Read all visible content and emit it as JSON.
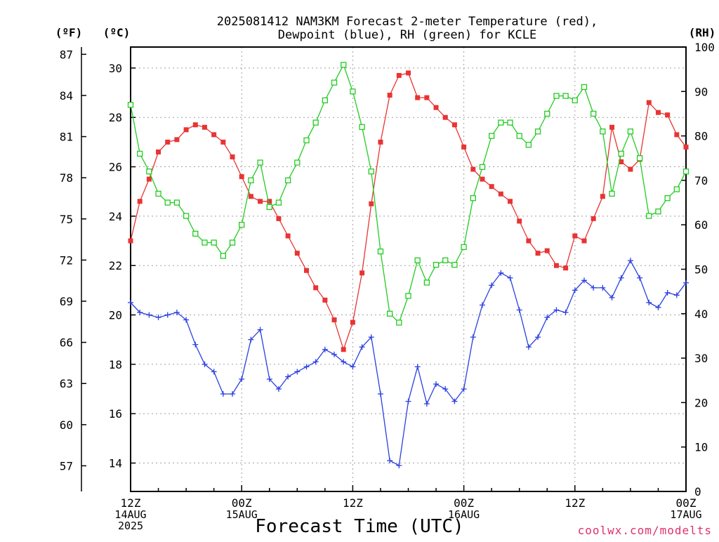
{
  "chart_data": {
    "type": "line",
    "title_lines": [
      "2025081412 NAM3KM Forecast 2-meter Temperature (red),",
      "Dewpoint (blue), RH (green) for KCLE"
    ],
    "xlabel": "Forecast Time (UTC)",
    "credit": "coolwx.com/modelts",
    "units": {
      "fahrenheit": "(ºF)",
      "celsius": "(ºC)",
      "rh": "(RH)"
    },
    "x_hours_range": [
      0,
      60
    ],
    "x_ticks": [
      {
        "hour": 0,
        "lines": [
          "12Z",
          "14AUG",
          "2025"
        ]
      },
      {
        "hour": 12,
        "lines": [
          "00Z",
          "15AUG"
        ]
      },
      {
        "hour": 24,
        "lines": [
          "12Z"
        ]
      },
      {
        "hour": 36,
        "lines": [
          "00Z",
          "16AUG"
        ]
      },
      {
        "hour": 48,
        "lines": [
          "12Z"
        ]
      },
      {
        "hour": 60,
        "lines": [
          "00Z",
          "17AUG"
        ]
      }
    ],
    "celsius_axis": {
      "range": [
        12.85,
        30.85
      ],
      "ticks": [
        "14",
        "16",
        "18",
        "20",
        "22",
        "24",
        "26",
        "28",
        "30"
      ]
    },
    "fahrenheit_axis": {
      "range": [
        55.13,
        87.53
      ],
      "ticks": [
        "57",
        "60",
        "63",
        "66",
        "69",
        "72",
        "75",
        "78",
        "81",
        "84",
        "87"
      ]
    },
    "rh_axis": {
      "range": [
        0,
        100
      ],
      "ticks": [
        "0",
        "10",
        "20",
        "30",
        "40",
        "50",
        "60",
        "70",
        "80",
        "90",
        "100"
      ]
    },
    "grid": true,
    "series": [
      {
        "name": "Temperature",
        "axis": "celsius",
        "color": "#e83434",
        "marker": "filled-square",
        "x": [
          0,
          1,
          2,
          3,
          4,
          5,
          6,
          7,
          8,
          9,
          10,
          11,
          12,
          13,
          14,
          15,
          16,
          17,
          18,
          19,
          20,
          21,
          22,
          23,
          24,
          25,
          26,
          27,
          28,
          29,
          30,
          31,
          32,
          33,
          34,
          35,
          36,
          37,
          38,
          39,
          40,
          41,
          42,
          43,
          44,
          45,
          46,
          47,
          48,
          49,
          50,
          51,
          52,
          53,
          54,
          55,
          56,
          57,
          58,
          59,
          60
        ],
        "values": [
          23.0,
          24.6,
          25.5,
          26.6,
          27.0,
          27.1,
          27.5,
          27.7,
          27.6,
          27.3,
          27.0,
          26.4,
          25.6,
          24.8,
          24.6,
          24.6,
          23.9,
          23.2,
          22.5,
          21.8,
          21.1,
          20.6,
          19.8,
          18.6,
          19.7,
          21.7,
          24.5,
          27.0,
          28.9,
          29.7,
          29.8,
          28.8,
          28.8,
          28.4,
          28.0,
          27.7,
          26.8,
          25.9,
          25.5,
          25.2,
          24.9,
          24.6,
          23.8,
          23.0,
          22.5,
          22.6,
          22.0,
          21.9,
          23.2,
          23.0,
          23.9,
          24.8,
          27.6,
          26.2,
          25.9,
          26.3,
          28.6,
          28.2,
          28.1,
          27.3,
          26.8
        ]
      },
      {
        "name": "Dewpoint",
        "axis": "celsius",
        "color": "#2a40e0",
        "marker": "plus",
        "x": [
          0,
          1,
          2,
          3,
          4,
          5,
          6,
          7,
          8,
          9,
          10,
          11,
          12,
          13,
          14,
          15,
          16,
          17,
          18,
          19,
          20,
          21,
          22,
          23,
          24,
          25,
          26,
          27,
          28,
          29,
          30,
          31,
          32,
          33,
          34,
          35,
          36,
          37,
          38,
          39,
          40,
          41,
          42,
          43,
          44,
          45,
          46,
          47,
          48,
          49,
          50,
          51,
          52,
          53,
          54,
          55,
          56,
          57,
          58,
          59,
          60
        ],
        "values": [
          20.5,
          20.1,
          20.0,
          19.9,
          20.0,
          20.1,
          19.8,
          18.8,
          18.0,
          17.7,
          16.8,
          16.8,
          17.4,
          19.0,
          19.4,
          17.4,
          17.0,
          17.5,
          17.7,
          17.9,
          18.1,
          18.6,
          18.4,
          18.1,
          17.9,
          18.7,
          19.1,
          16.8,
          14.1,
          13.9,
          16.5,
          17.9,
          16.4,
          17.2,
          17.0,
          16.5,
          17.0,
          19.1,
          20.4,
          21.2,
          21.7,
          21.5,
          20.2,
          18.7,
          19.1,
          19.9,
          20.2,
          20.1,
          21.0,
          21.4,
          21.1,
          21.1,
          20.7,
          21.5,
          22.2,
          21.5,
          20.5,
          20.3,
          20.9,
          20.8,
          21.3
        ]
      },
      {
        "name": "RH",
        "axis": "rh",
        "color": "#22cc22",
        "marker": "open-square",
        "x": [
          0,
          1,
          2,
          3,
          4,
          5,
          6,
          7,
          8,
          9,
          10,
          11,
          12,
          13,
          14,
          15,
          16,
          17,
          18,
          19,
          20,
          21,
          22,
          23,
          24,
          25,
          26,
          27,
          28,
          29,
          30,
          31,
          32,
          33,
          34,
          35,
          36,
          37,
          38,
          39,
          40,
          41,
          42,
          43,
          44,
          45,
          46,
          47,
          48,
          49,
          50,
          51,
          52,
          53,
          54,
          55,
          56,
          57,
          58,
          59,
          60
        ],
        "values": [
          87,
          76,
          72,
          67,
          65,
          65,
          62,
          58,
          56,
          56,
          53,
          56,
          60,
          70,
          74,
          64,
          65,
          70,
          74,
          79,
          83,
          88,
          92,
          96,
          90,
          82,
          72,
          54,
          40,
          38,
          44,
          52,
          47,
          51,
          52,
          51,
          55,
          66,
          73,
          80,
          83,
          83,
          80,
          78,
          81,
          85,
          89,
          89,
          88,
          91,
          85,
          81,
          67,
          76,
          81,
          75,
          62,
          63,
          66,
          68,
          72
        ]
      }
    ]
  }
}
